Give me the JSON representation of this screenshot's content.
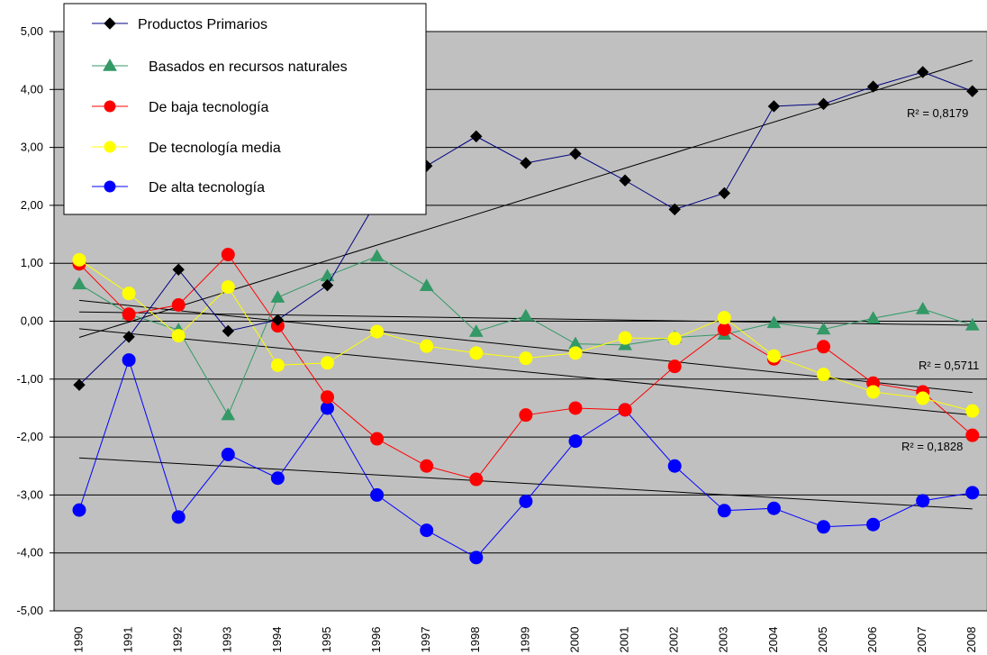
{
  "chart_data": {
    "type": "line",
    "categories": [
      "1990",
      "1991",
      "1992",
      "1993",
      "1994",
      "1995",
      "1996",
      "1997",
      "1998",
      "1999",
      "2000",
      "2001",
      "2002",
      "2003",
      "2004",
      "2005",
      "2006",
      "2007",
      "2008"
    ],
    "ylim": [
      -5,
      5
    ],
    "y_ticks": [
      "5,00",
      "4,00",
      "3,00",
      "2,00",
      "1,00",
      "0,00",
      "-1,00",
      "-2,00",
      "-3,00",
      "-4,00",
      "-5,00"
    ],
    "grid": true,
    "legend_position": "top-left",
    "background_color": "#c0c0c0",
    "series": [
      {
        "name": "Productos Primarios",
        "color": "#000000",
        "line_color": "#000080",
        "marker": "diamond",
        "values": [
          -1.1,
          -0.27,
          0.89,
          -0.17,
          0.02,
          0.62,
          2.08,
          2.68,
          3.19,
          2.73,
          2.89,
          2.43,
          1.93,
          2.21,
          3.71,
          3.75,
          4.05,
          4.3,
          3.97
        ]
      },
      {
        "name": "Basados en recursos naturales",
        "color": "#339966",
        "line_color": "#339966",
        "marker": "triangle",
        "values": [
          0.64,
          0.12,
          -0.15,
          -1.62,
          0.41,
          0.78,
          1.12,
          0.61,
          -0.18,
          0.09,
          -0.39,
          -0.41,
          -0.28,
          -0.23,
          -0.03,
          -0.14,
          0.05,
          0.21,
          -0.07
        ]
      },
      {
        "name": "De baja tecnología",
        "color": "#ff0000",
        "line_color": "#ff0000",
        "marker": "circle",
        "values": [
          0.99,
          0.12,
          0.28,
          1.15,
          -0.08,
          -1.31,
          -2.03,
          -2.5,
          -2.73,
          -1.62,
          -1.5,
          -1.53,
          -0.78,
          -0.14,
          -0.65,
          -0.44,
          -1.07,
          -1.22,
          -1.97
        ]
      },
      {
        "name": "De tecnología media",
        "color": "#ffff00",
        "line_color": "#ffff00",
        "marker": "circle",
        "values": [
          1.06,
          0.48,
          -0.25,
          0.59,
          -0.76,
          -0.72,
          -0.18,
          -0.43,
          -0.55,
          -0.64,
          -0.55,
          -0.29,
          -0.3,
          0.06,
          -0.6,
          -0.92,
          -1.22,
          -1.33,
          -1.55
        ]
      },
      {
        "name": "De alta tecnología",
        "color": "#0000ff",
        "line_color": "#0000ff",
        "marker": "circle",
        "values": [
          -3.26,
          -0.67,
          -3.38,
          -2.3,
          -2.71,
          -1.5,
          -3.0,
          -3.61,
          -4.08,
          -3.11,
          -2.07,
          -1.53,
          -2.5,
          -3.27,
          -3.23,
          -3.55,
          -3.51,
          -3.1,
          -2.96
        ]
      }
    ],
    "trendlines": [
      {
        "y_start": -0.28,
        "y_end": 4.5,
        "label": "R² = 0,8179"
      },
      {
        "y_start": 0.16,
        "y_end": -0.07,
        "label": ""
      },
      {
        "y_start": -0.13,
        "y_end": -1.62,
        "label": "R² = 0,1828"
      },
      {
        "y_start": 0.36,
        "y_end": -1.23,
        "label": "R² = 0,5711"
      },
      {
        "y_start": -2.36,
        "y_end": -3.24,
        "label": ""
      }
    ]
  }
}
